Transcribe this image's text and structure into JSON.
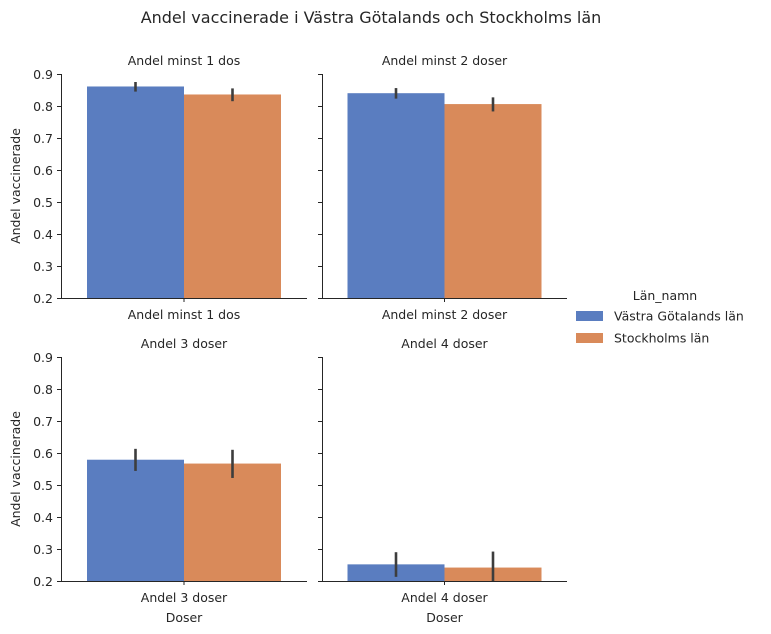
{
  "chart_data": {
    "type": "bar",
    "title": "Andel vaccinerade i Västra Götalands och Stockholms län",
    "ylabel": "Andel vaccinerade",
    "xlabel": "Doser",
    "ylim": [
      0.2,
      0.9
    ],
    "yticks": [
      0.2,
      0.3,
      0.4,
      0.5,
      0.6,
      0.7,
      0.8,
      0.9
    ],
    "ytick_labels": [
      "0.2",
      "0.3",
      "0.4",
      "0.5",
      "0.6",
      "0.7",
      "0.8",
      "0.9"
    ],
    "legend": {
      "title": "Län_namn",
      "placement": "right",
      "entries": [
        "Västra Götalands län",
        "Stockholms län"
      ]
    },
    "colors": [
      "#5a7dc0",
      "#d98a5a"
    ],
    "facets": [
      {
        "title": "Andel minst 1 dos",
        "category": "Andel minst 1 dos",
        "series": [
          {
            "name": "Västra Götalands län",
            "value": 0.861,
            "ci": [
              0.845,
              0.875
            ]
          },
          {
            "name": "Stockholms län",
            "value": 0.836,
            "ci": [
              0.815,
              0.855
            ]
          }
        ]
      },
      {
        "title": "Andel minst 2 doser",
        "category": "Andel minst 2 doser",
        "series": [
          {
            "name": "Västra Götalands län",
            "value": 0.84,
            "ci": [
              0.823,
              0.856
            ]
          },
          {
            "name": "Stockholms län",
            "value": 0.806,
            "ci": [
              0.783,
              0.827
            ]
          }
        ]
      },
      {
        "title": "Andel 3 doser",
        "category": "Andel 3 doser",
        "series": [
          {
            "name": "Västra Götalands län",
            "value": 0.579,
            "ci": [
              0.544,
              0.613
            ]
          },
          {
            "name": "Stockholms län",
            "value": 0.567,
            "ci": [
              0.522,
              0.61
            ]
          }
        ]
      },
      {
        "title": "Andel 4 doser",
        "category": "Andel 4 doser",
        "series": [
          {
            "name": "Västra Götalands län",
            "value": 0.252,
            "ci": [
              0.213,
              0.29
            ]
          },
          {
            "name": "Stockholms län",
            "value": 0.242,
            "ci": [
              0.2,
              0.292
            ]
          }
        ]
      }
    ]
  }
}
